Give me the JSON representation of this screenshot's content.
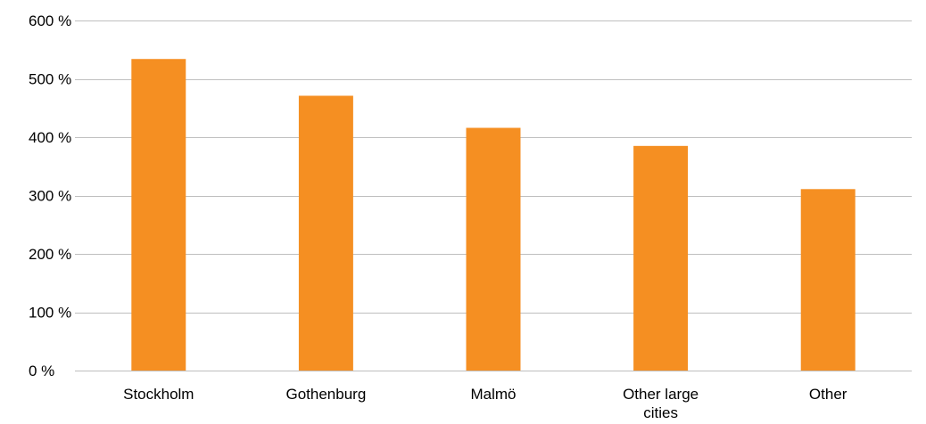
{
  "chart_data": {
    "type": "bar",
    "categories": [
      "Stockholm",
      "Gothenburg",
      "Malmö",
      "Other large cities",
      "Other"
    ],
    "category_label_lines": [
      [
        "Stockholm"
      ],
      [
        "Gothenburg"
      ],
      [
        "Malmö"
      ],
      [
        "Other large",
        "cities"
      ],
      [
        "Other"
      ]
    ],
    "values": [
      534,
      471,
      416,
      385,
      311
    ],
    "unit": "%",
    "ylim": [
      0,
      600
    ],
    "yticks": [
      0,
      100,
      200,
      300,
      400,
      500,
      600
    ],
    "ytick_labels": [
      "0  %",
      "100 %",
      "200 %",
      "300 %",
      "400 %",
      "500 %",
      "600 %"
    ],
    "title": "",
    "xlabel": "",
    "ylabel": "",
    "grid": true,
    "legend": "none",
    "bar_color": "#F58F22",
    "grid_color": "#BFBFBF"
  }
}
